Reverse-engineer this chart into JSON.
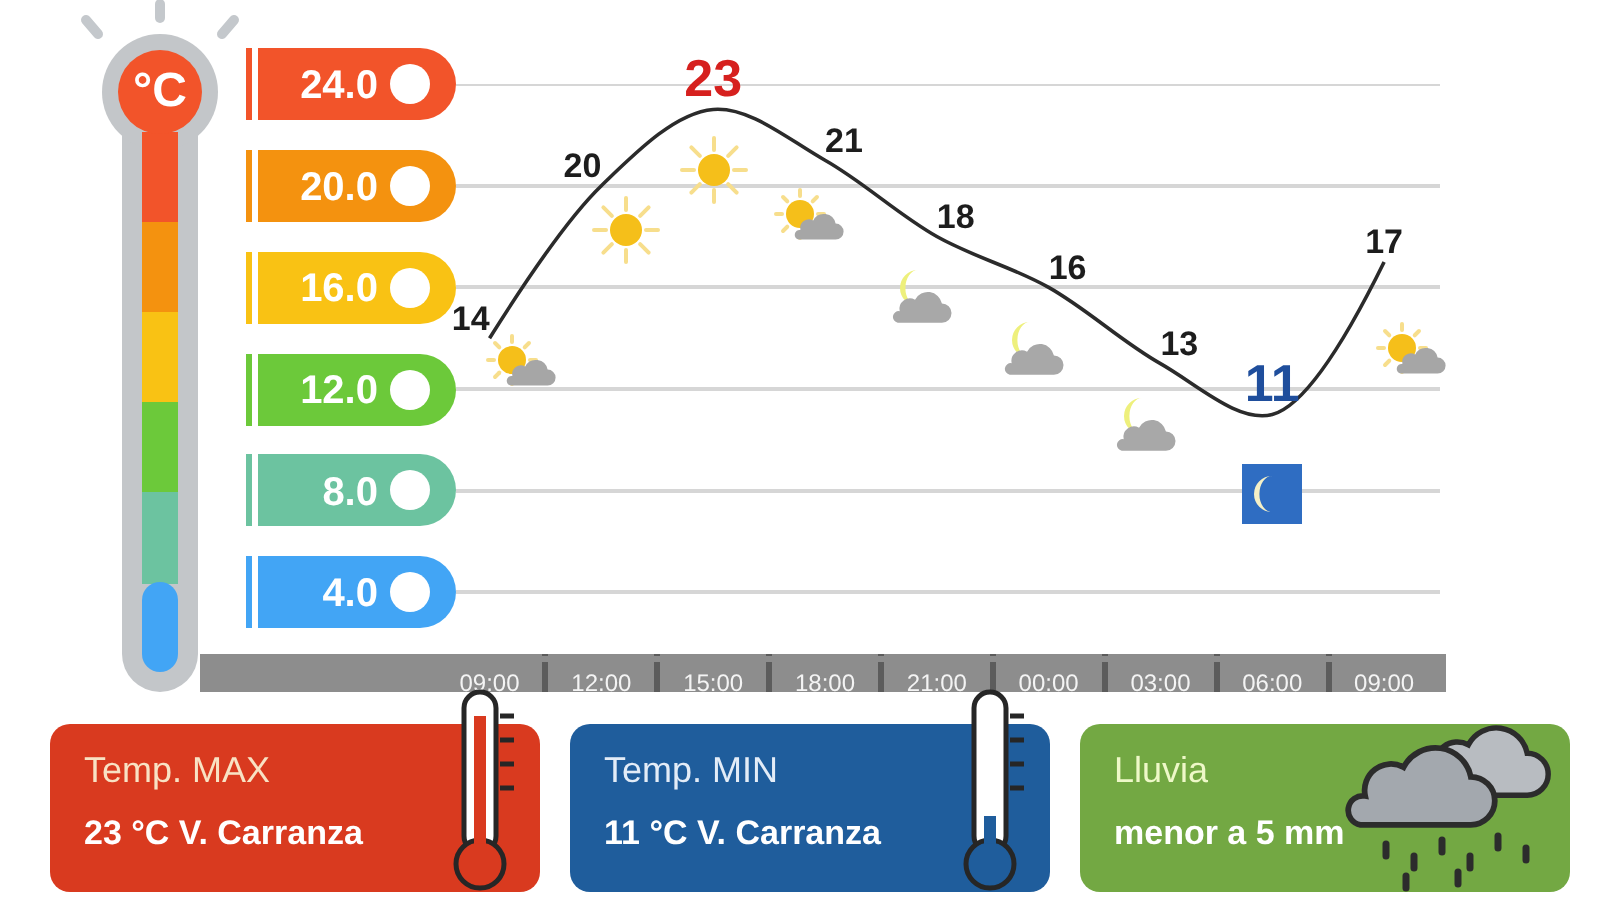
{
  "chart_data": {
    "type": "line",
    "ylabel": "°C",
    "categories": [
      "09:00",
      "12:00",
      "15:00",
      "18:00",
      "21:00",
      "00:00",
      "03:00",
      "06:00",
      "09:00"
    ],
    "values": [
      14,
      20,
      23,
      21,
      18,
      16,
      13,
      11,
      17
    ],
    "color": "#2b2b2b",
    "ylim": [
      1.5,
      24
    ],
    "yticks": [
      {
        "value": 4,
        "label": "4.0"
      },
      {
        "value": 8,
        "label": "8.0"
      },
      {
        "value": 12,
        "label": "12.0"
      },
      {
        "value": 16,
        "label": "16.0"
      },
      {
        "value": 20,
        "label": "20.0"
      },
      {
        "value": 24,
        "label": "24.0"
      }
    ],
    "grid": "y",
    "marker": "none",
    "line_style": "solid",
    "data_labels": true,
    "annotations": [
      "Temp. MAX",
      "23 °C V. Carranza",
      "Temp. MIN",
      "11 °C V. Carranza",
      "Lluvia",
      "menor a 5 mm"
    ]
  }
}
